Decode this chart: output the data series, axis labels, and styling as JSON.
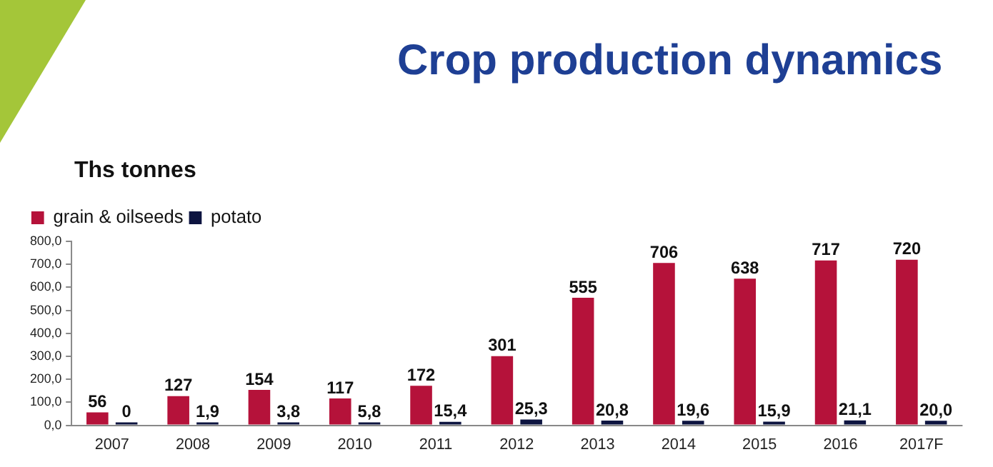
{
  "chart_data": {
    "type": "bar",
    "title": "Crop production dynamics",
    "ylabel": "Ths tonnes",
    "categories": [
      "2007",
      "2008",
      "2009",
      "2010",
      "2011",
      "2012",
      "2013",
      "2014",
      "2015",
      "2016",
      "2017F"
    ],
    "series": [
      {
        "name": "grain & oilseeds",
        "color": "#b5123a",
        "values": [
          56,
          127,
          154,
          117,
          172,
          301,
          555,
          706,
          638,
          717,
          720
        ],
        "value_labels": [
          "56",
          "127",
          "154",
          "117",
          "172",
          "301",
          "555",
          "706",
          "638",
          "717",
          "720"
        ]
      },
      {
        "name": "potato",
        "color": "#0d1440",
        "values": [
          0,
          1.9,
          3.8,
          5.8,
          15.4,
          25.3,
          20.8,
          19.6,
          15.9,
          21.1,
          20.0
        ],
        "value_labels": [
          "0",
          "1,9",
          "3,8",
          "5,8",
          "15,4",
          "25,3",
          "20,8",
          "19,6",
          "15,9",
          "21,1",
          "20,0"
        ]
      }
    ],
    "ylim": [
      0,
      800
    ],
    "yticks": [
      {
        "value": 0,
        "label": "0,0"
      },
      {
        "value": 100,
        "label": "100,0"
      },
      {
        "value": 200,
        "label": "200,0"
      },
      {
        "value": 300,
        "label": "300,0"
      },
      {
        "value": 400,
        "label": "400,0"
      },
      {
        "value": 500,
        "label": "500,0"
      },
      {
        "value": 600,
        "label": "600,0"
      },
      {
        "value": 700,
        "label": "700,0"
      },
      {
        "value": 800,
        "label": "800,0"
      }
    ],
    "grid": false,
    "legend": "top left"
  }
}
